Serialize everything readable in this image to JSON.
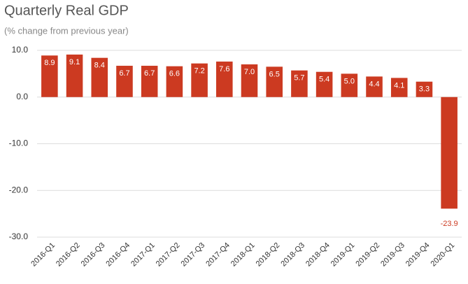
{
  "chart_data": {
    "type": "bar",
    "title": "Quarterly Real GDP",
    "subtitle": "(% change from previous year)",
    "categories": [
      "2016-Q1",
      "2016-Q2",
      "2016-Q3",
      "2016-Q4",
      "2017-Q1",
      "2017-Q2",
      "2017-Q3",
      "2017-Q4",
      "2018-Q1",
      "2018-Q2",
      "2018-Q3",
      "2018-Q4",
      "2019-Q1",
      "2019-Q2",
      "2019-Q3",
      "2019-Q4",
      "2020-Q1"
    ],
    "values": [
      8.9,
      9.1,
      8.4,
      6.7,
      6.7,
      6.6,
      7.2,
      7.6,
      7.0,
      6.5,
      5.7,
      5.4,
      5.0,
      4.4,
      4.1,
      3.3,
      -23.9
    ],
    "value_labels": [
      "8.9",
      "9.1",
      "8.4",
      "6.7",
      "6.7",
      "6.6",
      "7.2",
      "7.6",
      "7.0",
      "6.5",
      "5.7",
      "5.4",
      "5.0",
      "4.4",
      "4.1",
      "3.3",
      "-23.9"
    ],
    "color": "#cc3a21",
    "ylim": [
      -30,
      10
    ],
    "yticks": [
      {
        "value": 10,
        "label": "10.0"
      },
      {
        "value": 0,
        "label": "0.0"
      },
      {
        "value": -10,
        "label": "-10.0"
      },
      {
        "value": -20,
        "label": "-20.0"
      },
      {
        "value": -30,
        "label": "-30.0"
      }
    ],
    "grid": true
  }
}
